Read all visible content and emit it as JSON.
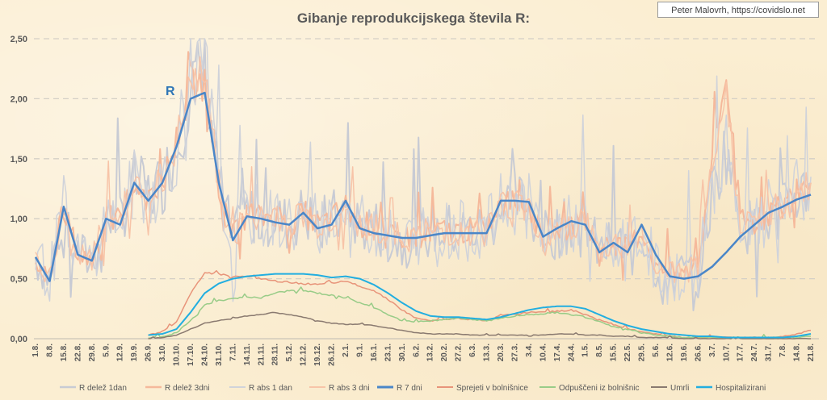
{
  "credit": "Peter Malovrh, https://covidslo.net",
  "chart_data": {
    "type": "line",
    "title": "Gibanje reprodukcijskega števila R:",
    "annotation": "R",
    "ylim": [
      0,
      2.5
    ],
    "ytick_labels": [
      "0,00",
      "0,50",
      "1,00",
      "1,50",
      "2,00",
      "2,50"
    ],
    "ytick_values": [
      0,
      0.5,
      1.0,
      1.5,
      2.0,
      2.5
    ],
    "grid": "horizontal dashed",
    "legend_position": "bottom",
    "x_tick_labels": [
      "1.8.",
      "8.8.",
      "15.8.",
      "22.8.",
      "29.8.",
      "5.9.",
      "12.9.",
      "19.9.",
      "26.9.",
      "3.10.",
      "10.10.",
      "17.10.",
      "24.10.",
      "31.10.",
      "7.11.",
      "14.11.",
      "21.11.",
      "28.11.",
      "5.12.",
      "12.12.",
      "19.12.",
      "26.12.",
      "2.1.",
      "9.1.",
      "16.1.",
      "23.1.",
      "30.1.",
      "6.2.",
      "13.2.",
      "20.2.",
      "27.2.",
      "6.3.",
      "13.3.",
      "20.3.",
      "27.3.",
      "3.4.",
      "10.4.",
      "17.4.",
      "24.4.",
      "1.5.",
      "8.5.",
      "15.5.",
      "22.5.",
      "29.5.",
      "5.6.",
      "12.6.",
      "19.6.",
      "26.6.",
      "3.7.",
      "10.7.",
      "17.7.",
      "24.7.",
      "31.7.",
      "7.8.",
      "14.8.",
      "21.8."
    ],
    "x_note": "weekly date ticks; series values sampled at each tick (approximate)",
    "series": [
      {
        "name": "R delež 1dan",
        "color": "#c8cbd4",
        "width": 2,
        "noise": 0.55,
        "values": [
          0.68,
          0.5,
          1.1,
          0.7,
          0.65,
          1.0,
          1.0,
          1.3,
          1.2,
          1.3,
          1.6,
          2.1,
          2.2,
          1.3,
          0.8,
          1.05,
          1.0,
          1.0,
          0.95,
          1.05,
          0.95,
          1.0,
          1.05,
          0.95,
          0.95,
          0.85,
          0.8,
          0.85,
          0.9,
          0.9,
          0.9,
          0.9,
          0.9,
          1.1,
          1.15,
          1.1,
          0.85,
          0.9,
          0.95,
          1.0,
          0.7,
          0.8,
          0.75,
          0.9,
          0.6,
          0.5,
          0.55,
          0.55,
          1.2,
          1.6,
          1.0,
          0.9,
          1.0,
          1.05,
          1.2,
          1.3
        ]
      },
      {
        "name": "R delež 3dni",
        "color": "#f5b99b",
        "width": 2,
        "noise": 0.25,
        "values": [
          0.65,
          0.5,
          1.1,
          0.7,
          0.65,
          1.0,
          1.0,
          1.3,
          1.2,
          1.3,
          1.65,
          2.15,
          2.15,
          1.3,
          0.85,
          1.05,
          1.0,
          1.05,
          0.95,
          1.05,
          0.95,
          1.0,
          1.1,
          0.95,
          0.95,
          0.85,
          0.85,
          0.85,
          0.9,
          0.9,
          0.9,
          0.9,
          0.9,
          1.1,
          1.15,
          1.1,
          0.85,
          0.9,
          0.95,
          1.0,
          0.7,
          0.8,
          0.75,
          0.9,
          0.6,
          0.55,
          0.55,
          0.6,
          1.5,
          2.2,
          1.0,
          0.95,
          1.05,
          1.1,
          1.25,
          1.3
        ]
      },
      {
        "name": "R abs 1 dan",
        "color": "#d0d3da",
        "width": 1.5,
        "noise": 0.6,
        "values": [
          0.7,
          0.5,
          1.1,
          0.7,
          0.65,
          1.0,
          1.0,
          1.3,
          1.2,
          1.3,
          1.6,
          2.2,
          2.3,
          1.3,
          0.8,
          1.05,
          1.0,
          1.0,
          0.95,
          1.05,
          0.95,
          1.0,
          1.05,
          0.95,
          0.95,
          0.85,
          0.8,
          0.85,
          0.9,
          0.9,
          0.9,
          0.9,
          0.9,
          1.1,
          1.15,
          1.1,
          0.85,
          0.9,
          0.95,
          1.0,
          0.7,
          0.8,
          0.75,
          0.9,
          0.6,
          0.5,
          0.55,
          0.55,
          1.25,
          1.7,
          1.0,
          0.9,
          1.05,
          1.05,
          1.2,
          1.35
        ]
      },
      {
        "name": "R abs 3 dni",
        "color": "#f7c4a8",
        "width": 1.5,
        "noise": 0.3,
        "values": [
          0.66,
          0.5,
          1.1,
          0.7,
          0.65,
          1.0,
          1.0,
          1.3,
          1.2,
          1.3,
          1.62,
          2.1,
          2.2,
          1.3,
          0.82,
          1.05,
          1.0,
          1.05,
          0.95,
          1.05,
          0.95,
          1.0,
          1.1,
          0.95,
          0.95,
          0.85,
          0.85,
          0.85,
          0.9,
          0.9,
          0.9,
          0.9,
          0.9,
          1.1,
          1.15,
          1.1,
          0.85,
          0.9,
          0.95,
          1.0,
          0.7,
          0.8,
          0.75,
          0.9,
          0.6,
          0.55,
          0.55,
          0.6,
          1.4,
          2.0,
          1.0,
          0.95,
          1.05,
          1.1,
          1.2,
          1.3
        ]
      },
      {
        "name": "R 7 dni",
        "color": "#4a86c8",
        "width": 2.5,
        "noise": 0,
        "values": [
          0.68,
          0.48,
          1.1,
          0.7,
          0.65,
          1.0,
          0.95,
          1.3,
          1.15,
          1.3,
          1.6,
          2.0,
          2.05,
          1.3,
          0.82,
          1.02,
          1.0,
          0.97,
          0.95,
          1.05,
          0.92,
          0.95,
          1.15,
          0.92,
          0.88,
          0.86,
          0.84,
          0.84,
          0.86,
          0.88,
          0.88,
          0.88,
          0.88,
          1.15,
          1.15,
          1.14,
          0.85,
          0.92,
          0.98,
          0.95,
          0.72,
          0.8,
          0.72,
          0.95,
          0.7,
          0.52,
          0.5,
          0.52,
          0.6,
          0.72,
          0.85,
          0.95,
          1.05,
          1.1,
          1.16,
          1.2
        ]
      },
      {
        "name": "Sprejeti v bolnišnice",
        "color": "#e8947a",
        "width": 1.5,
        "noise": 0.02,
        "values": [
          null,
          null,
          null,
          null,
          null,
          null,
          null,
          null,
          0.03,
          0.06,
          0.14,
          0.38,
          0.55,
          0.54,
          0.52,
          0.52,
          0.5,
          0.48,
          0.47,
          0.46,
          0.45,
          0.46,
          0.48,
          0.44,
          0.4,
          0.33,
          0.24,
          0.17,
          0.15,
          0.16,
          0.17,
          0.16,
          0.15,
          0.2,
          0.2,
          0.22,
          0.22,
          0.23,
          0.24,
          0.2,
          0.16,
          0.12,
          0.08,
          0.06,
          0.04,
          0.02,
          0.01,
          0.01,
          0.01,
          0.01,
          0.01,
          0.01,
          0.01,
          0.02,
          0.04,
          0.07
        ]
      },
      {
        "name": "Odpuščeni iz bolnišnic",
        "color": "#99cc88",
        "width": 1.5,
        "noise": 0.02,
        "values": [
          null,
          null,
          null,
          null,
          null,
          null,
          null,
          null,
          0.01,
          0.02,
          0.05,
          0.15,
          0.28,
          0.32,
          0.33,
          0.35,
          0.34,
          0.38,
          0.4,
          0.4,
          0.38,
          0.36,
          0.34,
          0.3,
          0.26,
          0.2,
          0.15,
          0.14,
          0.15,
          0.16,
          0.17,
          0.16,
          0.15,
          0.17,
          0.19,
          0.2,
          0.21,
          0.22,
          0.2,
          0.18,
          0.14,
          0.1,
          0.08,
          0.05,
          0.03,
          0.02,
          0.01,
          0.01,
          0.01,
          0.01,
          0.01,
          0.01,
          0.01,
          0.01,
          0.01,
          0.02
        ]
      },
      {
        "name": "Umrli",
        "color": "#8a7a70",
        "width": 1.5,
        "noise": 0.01,
        "values": [
          null,
          null,
          null,
          null,
          null,
          null,
          null,
          null,
          0.0,
          0.01,
          0.03,
          0.08,
          0.13,
          0.15,
          0.17,
          0.19,
          0.2,
          0.22,
          0.2,
          0.18,
          0.15,
          0.13,
          0.12,
          0.12,
          0.11,
          0.09,
          0.07,
          0.05,
          0.04,
          0.04,
          0.04,
          0.03,
          0.03,
          0.03,
          0.03,
          0.03,
          0.03,
          0.04,
          0.04,
          0.03,
          0.03,
          0.02,
          0.02,
          0.01,
          0.01,
          0.01,
          0.0,
          0.0,
          0.0,
          0.0,
          0.0,
          0.0,
          0.0,
          0.0,
          0.0,
          0.0
        ]
      },
      {
        "name": "Hospitalizirani",
        "color": "#22aee0",
        "width": 2,
        "noise": 0,
        "values": [
          null,
          null,
          null,
          null,
          null,
          null,
          null,
          null,
          0.03,
          0.04,
          0.08,
          0.22,
          0.38,
          0.46,
          0.5,
          0.52,
          0.53,
          0.54,
          0.54,
          0.54,
          0.53,
          0.51,
          0.52,
          0.5,
          0.45,
          0.38,
          0.3,
          0.23,
          0.19,
          0.18,
          0.18,
          0.17,
          0.16,
          0.18,
          0.21,
          0.24,
          0.26,
          0.27,
          0.27,
          0.25,
          0.2,
          0.15,
          0.11,
          0.08,
          0.06,
          0.04,
          0.03,
          0.02,
          0.02,
          0.01,
          0.01,
          0.01,
          0.01,
          0.01,
          0.02,
          0.04
        ]
      }
    ]
  }
}
